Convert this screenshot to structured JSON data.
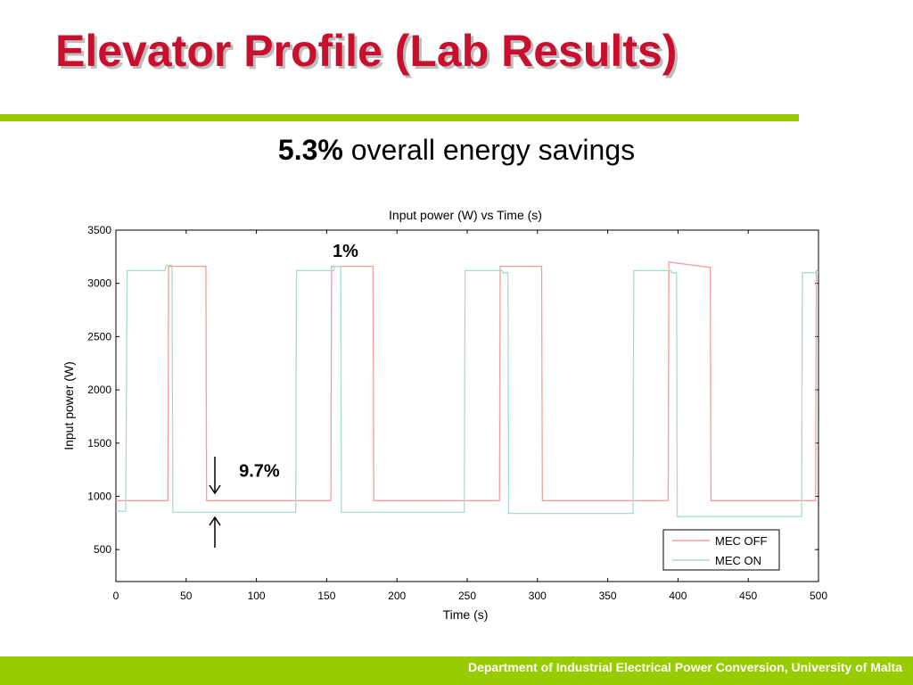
{
  "slide": {
    "title": "Elevator Profile (Lab Results)",
    "headline_value": "5.3%",
    "headline_text": "overall energy savings",
    "footer": "Department of Industrial Electrical Power Conversion, University of Malta"
  },
  "colors": {
    "title": "#c8102e",
    "accent_bar": "#99cc00",
    "mec_off": "#f4a09a",
    "mec_on": "#a7dccb"
  },
  "chart_data": {
    "type": "line",
    "title": "Input power (W) vs Time (s)",
    "xlabel": "Time (s)",
    "ylabel": "Input power (W)",
    "xlim": [
      0,
      500
    ],
    "ylim": [
      200,
      3500
    ],
    "xticks": [
      0,
      50,
      100,
      150,
      200,
      250,
      300,
      350,
      400,
      450,
      500
    ],
    "yticks": [
      500,
      1000,
      1500,
      2000,
      2500,
      3000,
      3500
    ],
    "grid": false,
    "legend_position": "bottom-right",
    "series": [
      {
        "name": "MEC OFF",
        "x": [
          0,
          3,
          5,
          37,
          37.5,
          64,
          64.5,
          153,
          153.5,
          183,
          183.5,
          273,
          273.5,
          303,
          303.5,
          393,
          393.5,
          423,
          423.5,
          498,
          498.5,
          500
        ],
        "y": [
          960,
          960,
          960,
          960,
          3160,
          3160,
          960,
          960,
          3160,
          3160,
          960,
          960,
          3160,
          3160,
          960,
          960,
          3200,
          3150,
          960,
          960,
          3120,
          3110
        ]
      },
      {
        "name": "MEC ON",
        "x": [
          0,
          7,
          8,
          35,
          35.5,
          40,
          40.5,
          128,
          128.5,
          155,
          155.5,
          160,
          160.5,
          248,
          248.5,
          275,
          275.5,
          279,
          279.5,
          368,
          368.5,
          395,
          395.5,
          399,
          399.5,
          488,
          488.5,
          500
        ],
        "y": [
          860,
          860,
          3120,
          3120,
          3170,
          3170,
          850,
          850,
          3120,
          3120,
          3160,
          3160,
          850,
          850,
          3120,
          3120,
          3100,
          3100,
          840,
          840,
          3120,
          3120,
          3100,
          3100,
          810,
          810,
          3100,
          3100
        ]
      }
    ],
    "annotations": [
      {
        "text": "1%",
        "x": 158,
        "y": 3250
      },
      {
        "text": "9.7%",
        "x": 80,
        "y": 1185,
        "arrows": "down arrow above MEC OFF level, up arrow below MEC ON level"
      }
    ]
  }
}
